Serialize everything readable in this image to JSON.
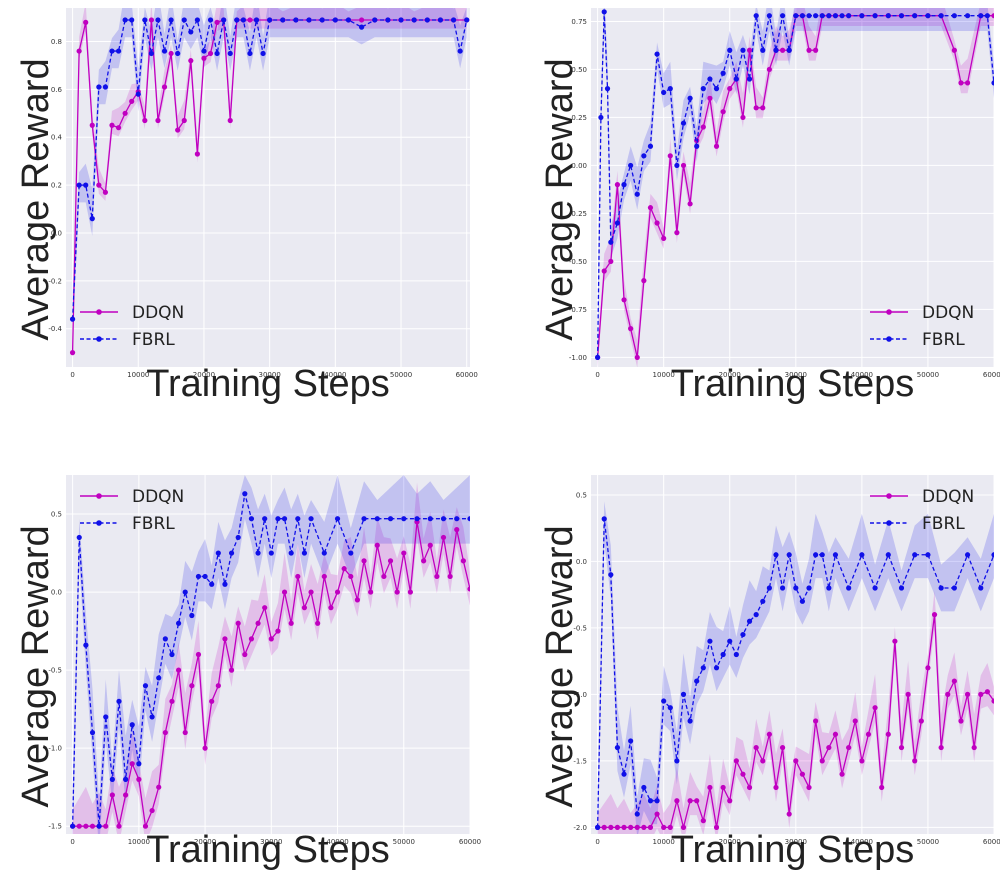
{
  "figure": {
    "colors": {
      "ddqn": "#c000c0",
      "fbrl": "#1010e8"
    }
  },
  "chart_data": [
    {
      "type": "line",
      "xlabel": "Training Steps",
      "ylabel": "Average Reward",
      "xlim": [
        -1000,
        60500
      ],
      "ylim": [
        -0.56,
        0.94
      ],
      "xticks": [
        0,
        10000,
        20000,
        30000,
        40000,
        50000,
        60000
      ],
      "yticks": [
        -0.4,
        -0.2,
        0.0,
        0.2,
        0.4,
        0.6,
        0.8
      ],
      "ytick_labels": [
        "-0.4",
        "-0.2",
        "0.0",
        "0.2",
        "0.4",
        "0.6",
        "0.8"
      ],
      "legend": "lower-left",
      "grid": true,
      "series": [
        {
          "name": "DDQN",
          "style": "solid",
          "color": "#c000c0",
          "band": 0.06,
          "x": [
            0,
            1000,
            2000,
            3000,
            4000,
            5000,
            6000,
            7000,
            8000,
            9000,
            10000,
            11000,
            12000,
            13000,
            14000,
            15000,
            16000,
            17000,
            18000,
            19000,
            20000,
            21000,
            22000,
            23000,
            24000,
            25000,
            26000,
            27000,
            28000,
            30000,
            32000,
            34000,
            36000,
            38000,
            40000,
            42000,
            44000,
            46000,
            48000,
            50000,
            52000,
            54000,
            56000,
            58000,
            60000
          ],
          "values": [
            -0.5,
            0.76,
            0.88,
            0.45,
            0.2,
            0.17,
            0.45,
            0.44,
            0.5,
            0.55,
            0.59,
            0.47,
            0.89,
            0.47,
            0.61,
            0.75,
            0.43,
            0.47,
            0.72,
            0.33,
            0.73,
            0.75,
            0.88,
            0.89,
            0.47,
            0.89,
            0.89,
            0.89,
            0.89,
            0.89,
            0.89,
            0.89,
            0.89,
            0.89,
            0.89,
            0.89,
            0.89,
            0.89,
            0.89,
            0.89,
            0.89,
            0.89,
            0.89,
            0.89,
            0.89
          ]
        },
        {
          "name": "FBRL",
          "style": "dashed",
          "color": "#1010e8",
          "band": 0.09,
          "x": [
            0,
            1000,
            2000,
            3000,
            4000,
            5000,
            6000,
            7000,
            8000,
            9000,
            10000,
            11000,
            12000,
            13000,
            14000,
            15000,
            16000,
            17000,
            18000,
            19000,
            20000,
            21000,
            22000,
            23000,
            24000,
            25000,
            26000,
            27000,
            28000,
            29000,
            30000,
            32000,
            34000,
            36000,
            38000,
            40000,
            42000,
            44000,
            46000,
            48000,
            50000,
            52000,
            54000,
            56000,
            58000,
            59000,
            60000
          ],
          "values": [
            -0.36,
            0.2,
            0.2,
            0.06,
            0.61,
            0.61,
            0.76,
            0.76,
            0.89,
            0.89,
            0.58,
            0.89,
            0.75,
            0.89,
            0.76,
            0.89,
            0.75,
            0.89,
            0.84,
            0.89,
            0.76,
            0.89,
            0.75,
            0.89,
            0.75,
            0.89,
            0.89,
            0.75,
            0.89,
            0.75,
            0.89,
            0.89,
            0.89,
            0.89,
            0.89,
            0.89,
            0.89,
            0.86,
            0.89,
            0.89,
            0.89,
            0.89,
            0.89,
            0.89,
            0.89,
            0.76,
            0.89
          ]
        }
      ]
    },
    {
      "type": "line",
      "xlabel": "Training Steps",
      "ylabel": "Average Reward",
      "xlim": [
        -1000,
        60000
      ],
      "ylim": [
        -1.05,
        0.82
      ],
      "xticks": [
        0,
        10000,
        20000,
        30000,
        40000,
        50000,
        60000
      ],
      "yticks": [
        -1.0,
        -0.75,
        -0.5,
        -0.25,
        0.0,
        0.25,
        0.5,
        0.75
      ],
      "ytick_labels": [
        "-1.00",
        "-0.75",
        "-0.50",
        "-0.25",
        "0.00",
        "0.25",
        "0.50",
        "0.75"
      ],
      "legend": "lower-right",
      "grid": true,
      "series": [
        {
          "name": "DDQN",
          "style": "solid",
          "color": "#c000c0",
          "band": 0.09,
          "x": [
            0,
            1000,
            2000,
            3000,
            4000,
            5000,
            6000,
            7000,
            8000,
            9000,
            10000,
            11000,
            12000,
            13000,
            14000,
            15000,
            16000,
            17000,
            18000,
            19000,
            20000,
            21000,
            22000,
            23000,
            24000,
            25000,
            26000,
            27000,
            28000,
            29000,
            30000,
            31000,
            32000,
            33000,
            34000,
            35000,
            36000,
            38000,
            40000,
            42000,
            44000,
            46000,
            48000,
            50000,
            52000,
            54000,
            55000,
            56000,
            58000,
            60000
          ],
          "values": [
            -1.0,
            -0.55,
            -0.5,
            -0.1,
            -0.7,
            -0.85,
            -1.0,
            -0.6,
            -0.22,
            -0.3,
            -0.38,
            0.05,
            -0.35,
            0.0,
            -0.2,
            0.13,
            0.2,
            0.35,
            0.1,
            0.28,
            0.4,
            0.45,
            0.25,
            0.6,
            0.3,
            0.3,
            0.5,
            0.6,
            0.6,
            0.6,
            0.78,
            0.78,
            0.6,
            0.6,
            0.78,
            0.78,
            0.78,
            0.78,
            0.78,
            0.78,
            0.78,
            0.78,
            0.78,
            0.78,
            0.78,
            0.6,
            0.43,
            0.43,
            0.78,
            0.78
          ]
        },
        {
          "name": "FBRL",
          "style": "dashed",
          "color": "#1010e8",
          "band": 0.1,
          "x": [
            0,
            500,
            1000,
            1500,
            2000,
            3000,
            4000,
            5000,
            6000,
            7000,
            8000,
            9000,
            10000,
            11000,
            12000,
            13000,
            14000,
            15000,
            16000,
            17000,
            18000,
            19000,
            20000,
            21000,
            22000,
            23000,
            24000,
            25000,
            26000,
            27000,
            28000,
            29000,
            30000,
            31000,
            32000,
            33000,
            34000,
            35000,
            36000,
            37000,
            38000,
            40000,
            42000,
            44000,
            46000,
            48000,
            50000,
            52000,
            54000,
            56000,
            58000,
            59000,
            60000
          ],
          "values": [
            -1.0,
            0.25,
            0.8,
            0.4,
            -0.4,
            -0.3,
            -0.1,
            0.0,
            -0.15,
            0.05,
            0.1,
            0.58,
            0.38,
            0.4,
            0.0,
            0.22,
            0.35,
            0.1,
            0.4,
            0.45,
            0.4,
            0.48,
            0.6,
            0.45,
            0.6,
            0.45,
            0.78,
            0.6,
            0.78,
            0.6,
            0.78,
            0.6,
            0.78,
            0.78,
            0.78,
            0.78,
            0.78,
            0.78,
            0.78,
            0.78,
            0.78,
            0.78,
            0.78,
            0.78,
            0.78,
            0.78,
            0.78,
            0.78,
            0.78,
            0.78,
            0.78,
            0.78,
            0.43
          ]
        }
      ]
    },
    {
      "type": "line",
      "xlabel": "Training Steps",
      "ylabel": "Average Reward",
      "xlim": [
        -1000,
        60000
      ],
      "ylim": [
        -1.55,
        0.75
      ],
      "xticks": [
        0,
        10000,
        20000,
        30000,
        40000,
        50000,
        60000
      ],
      "yticks": [
        -1.5,
        -1.0,
        -0.5,
        0.0,
        0.5
      ],
      "ytick_labels": [
        "-1.5",
        "-1.0",
        "-0.5",
        "0.0",
        "0.5"
      ],
      "legend": "top-left",
      "grid": true,
      "series": [
        {
          "name": "DDQN",
          "style": "solid",
          "color": "#c000c0",
          "band": 0.18,
          "x": [
            0,
            1000,
            2000,
            3000,
            4000,
            5000,
            6000,
            7000,
            8000,
            9000,
            10000,
            11000,
            12000,
            13000,
            14000,
            15000,
            16000,
            17000,
            18000,
            19000,
            20000,
            21000,
            22000,
            23000,
            24000,
            25000,
            26000,
            27000,
            28000,
            29000,
            30000,
            31000,
            32000,
            33000,
            34000,
            35000,
            36000,
            37000,
            38000,
            39000,
            40000,
            41000,
            42000,
            43000,
            44000,
            45000,
            46000,
            47000,
            48000,
            49000,
            50000,
            51000,
            52000,
            53000,
            54000,
            55000,
            56000,
            57000,
            58000,
            59000,
            60000
          ],
          "values": [
            -1.5,
            -1.5,
            -1.5,
            -1.5,
            -1.5,
            -1.5,
            -1.3,
            -1.5,
            -1.3,
            -1.1,
            -1.2,
            -1.5,
            -1.4,
            -1.25,
            -0.9,
            -0.7,
            -0.5,
            -0.9,
            -0.6,
            -0.4,
            -1.0,
            -0.7,
            -0.6,
            -0.3,
            -0.5,
            -0.2,
            -0.4,
            -0.3,
            -0.2,
            -0.1,
            -0.3,
            -0.25,
            0.0,
            -0.2,
            0.1,
            -0.1,
            0.0,
            -0.2,
            0.1,
            -0.1,
            0.0,
            0.15,
            0.1,
            -0.05,
            0.2,
            0.0,
            0.3,
            0.1,
            0.2,
            0.0,
            0.25,
            0.0,
            0.45,
            0.2,
            0.3,
            0.1,
            0.35,
            0.1,
            0.4,
            0.2,
            0.02
          ]
        },
        {
          "name": "FBRL",
          "style": "dashed",
          "color": "#1010e8",
          "band": 0.2,
          "x": [
            0,
            1000,
            2000,
            3000,
            4000,
            5000,
            6000,
            7000,
            8000,
            9000,
            10000,
            11000,
            12000,
            13000,
            14000,
            15000,
            16000,
            17000,
            18000,
            19000,
            20000,
            21000,
            22000,
            23000,
            24000,
            25000,
            26000,
            27000,
            28000,
            29000,
            30000,
            31000,
            32000,
            33000,
            34000,
            35000,
            36000,
            38000,
            40000,
            42000,
            44000,
            46000,
            48000,
            50000,
            52000,
            54000,
            56000,
            58000,
            60000
          ],
          "values": [
            -1.5,
            0.35,
            -0.34,
            -0.9,
            -1.5,
            -0.8,
            -1.2,
            -0.7,
            -1.2,
            -0.85,
            -1.1,
            -0.6,
            -0.8,
            -0.55,
            -0.3,
            -0.4,
            -0.2,
            0.0,
            -0.15,
            0.1,
            0.1,
            0.05,
            0.25,
            0.05,
            0.25,
            0.35,
            0.63,
            0.47,
            0.25,
            0.47,
            0.25,
            0.47,
            0.47,
            0.25,
            0.47,
            0.25,
            0.47,
            0.25,
            0.47,
            0.25,
            0.47,
            0.47,
            0.47,
            0.47,
            0.47,
            0.47,
            0.47,
            0.47,
            0.47
          ]
        }
      ]
    },
    {
      "type": "line",
      "xlabel": "Training Steps",
      "ylabel": "Average Reward",
      "xlim": [
        -1000,
        60000
      ],
      "ylim": [
        -2.05,
        0.65
      ],
      "xticks": [
        0,
        10000,
        20000,
        30000,
        40000,
        50000,
        60000
      ],
      "yticks": [
        -2.0,
        -1.5,
        -1.0,
        -0.5,
        0.0,
        0.5
      ],
      "ytick_labels": [
        "-2.0",
        "-1.5",
        "-1.0",
        "-0.5",
        "0.0",
        "0.5"
      ],
      "legend": "top-right",
      "grid": true,
      "series": [
        {
          "name": "DDQN",
          "style": "solid",
          "color": "#c000c0",
          "band": 0.18,
          "x": [
            0,
            1000,
            2000,
            3000,
            4000,
            5000,
            6000,
            7000,
            8000,
            9000,
            10000,
            11000,
            12000,
            13000,
            14000,
            15000,
            16000,
            17000,
            18000,
            19000,
            20000,
            21000,
            22000,
            23000,
            24000,
            25000,
            26000,
            27000,
            28000,
            29000,
            30000,
            31000,
            32000,
            33000,
            34000,
            35000,
            36000,
            37000,
            38000,
            39000,
            40000,
            41000,
            42000,
            43000,
            44000,
            45000,
            46000,
            47000,
            48000,
            49000,
            50000,
            51000,
            52000,
            53000,
            54000,
            55000,
            56000,
            57000,
            58000,
            59000,
            60000
          ],
          "values": [
            -2.0,
            -2.0,
            -2.0,
            -2.0,
            -2.0,
            -2.0,
            -2.0,
            -2.0,
            -2.0,
            -1.9,
            -2.0,
            -2.0,
            -1.8,
            -2.0,
            -1.8,
            -1.8,
            -1.95,
            -1.7,
            -2.0,
            -1.7,
            -1.8,
            -1.5,
            -1.6,
            -1.7,
            -1.4,
            -1.5,
            -1.3,
            -1.7,
            -1.4,
            -1.9,
            -1.5,
            -1.6,
            -1.7,
            -1.2,
            -1.5,
            -1.4,
            -1.3,
            -1.6,
            -1.4,
            -1.2,
            -1.5,
            -1.3,
            -1.1,
            -1.7,
            -1.3,
            -0.6,
            -1.4,
            -1.0,
            -1.5,
            -1.2,
            -0.8,
            -0.4,
            -1.4,
            -1.0,
            -0.9,
            -1.2,
            -1.0,
            -1.4,
            -1.0,
            -0.98,
            -1.05
          ]
        },
        {
          "name": "FBRL",
          "style": "dashed",
          "color": "#1010e8",
          "band": 0.22,
          "x": [
            0,
            1000,
            2000,
            3000,
            4000,
            5000,
            6000,
            7000,
            8000,
            9000,
            10000,
            11000,
            12000,
            13000,
            14000,
            15000,
            16000,
            17000,
            18000,
            19000,
            20000,
            21000,
            22000,
            23000,
            24000,
            25000,
            26000,
            27000,
            28000,
            29000,
            30000,
            31000,
            32000,
            33000,
            34000,
            35000,
            36000,
            38000,
            40000,
            42000,
            44000,
            46000,
            48000,
            50000,
            52000,
            54000,
            56000,
            58000,
            60000
          ],
          "values": [
            -2.0,
            0.32,
            -0.1,
            -1.4,
            -1.6,
            -1.35,
            -1.9,
            -1.7,
            -1.8,
            -1.8,
            -1.05,
            -1.1,
            -1.5,
            -1.0,
            -1.2,
            -0.9,
            -0.8,
            -0.6,
            -0.8,
            -0.7,
            -0.6,
            -0.7,
            -0.55,
            -0.45,
            -0.4,
            -0.3,
            -0.2,
            0.05,
            -0.2,
            0.05,
            -0.2,
            -0.3,
            -0.2,
            0.05,
            0.05,
            -0.2,
            0.05,
            -0.2,
            0.05,
            -0.2,
            0.05,
            -0.2,
            0.05,
            0.05,
            -0.2,
            -0.2,
            0.05,
            -0.2,
            0.05
          ]
        }
      ]
    }
  ]
}
